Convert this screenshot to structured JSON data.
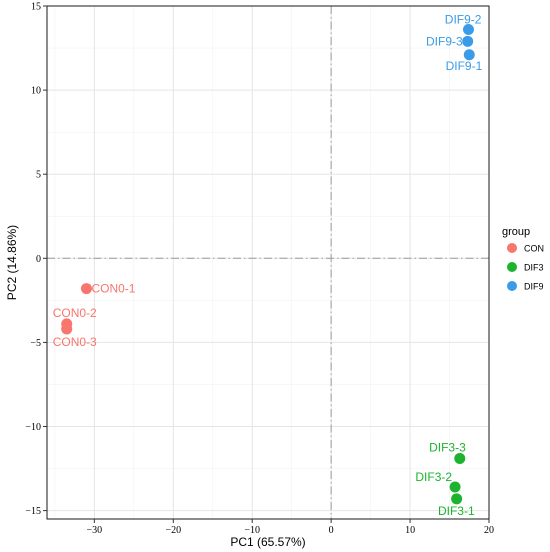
{
  "chart_data": {
    "type": "scatter",
    "title": "",
    "xlabel": "PC1 (65.57%)",
    "ylabel": "PC2 (14.86%)",
    "xlim": [
      -36,
      20
    ],
    "ylim": [
      -15.5,
      15
    ],
    "x_ticks": [
      -30,
      -20,
      -10,
      0,
      10,
      20
    ],
    "y_ticks": [
      15,
      10,
      5,
      0,
      -5,
      -10,
      -15
    ],
    "x_tick_labels": [
      "−30",
      "−20",
      "−10",
      "0",
      "10",
      "20"
    ],
    "y_tick_labels": [
      "15",
      "10",
      "5",
      "0",
      "−5",
      "−10",
      "−15"
    ],
    "grid": true,
    "reference_lines": {
      "x": 0,
      "y": 0,
      "style": "dash-dot"
    },
    "legend": {
      "title": "group",
      "placement": "right",
      "entries": [
        {
          "name": "CON",
          "color": "#F8766D"
        },
        {
          "name": "DIF3",
          "color": "#1DB32E"
        },
        {
          "name": "DIF9",
          "color": "#3A9BE8"
        }
      ]
    },
    "series": [
      {
        "name": "CON",
        "color": "#F8766D",
        "points": [
          {
            "label": "CON0-1",
            "x": -31.0,
            "y": -1.8
          },
          {
            "label": "CON0-2",
            "x": -33.5,
            "y": -3.9
          },
          {
            "label": "CON0-3",
            "x": -33.5,
            "y": -4.2
          }
        ]
      },
      {
        "name": "DIF3",
        "color": "#1DB32E",
        "points": [
          {
            "label": "DIF3-3",
            "x": 16.3,
            "y": -11.9
          },
          {
            "label": "DIF3-2",
            "x": 15.7,
            "y": -13.6
          },
          {
            "label": "DIF3-1",
            "x": 15.9,
            "y": -14.3
          }
        ]
      },
      {
        "name": "DIF9",
        "color": "#3A9BE8",
        "points": [
          {
            "label": "DIF9-2",
            "x": 17.4,
            "y": 13.6
          },
          {
            "label": "DIF9-3",
            "x": 17.3,
            "y": 12.9
          },
          {
            "label": "DIF9-1",
            "x": 17.5,
            "y": 12.1
          }
        ]
      }
    ]
  }
}
